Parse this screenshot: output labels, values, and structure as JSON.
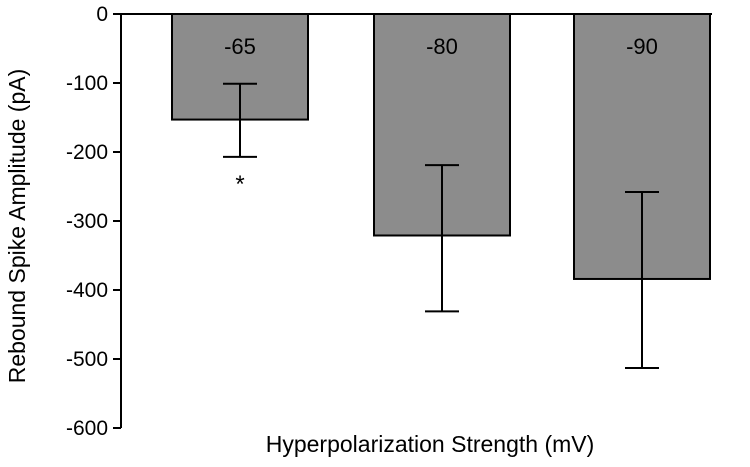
{
  "chart_data": {
    "type": "bar",
    "title": "",
    "xlabel": "Hyperpolarization Strength (mV)",
    "ylabel": "Rebound Spike Amplitude (pA)",
    "categories": [
      "-65",
      "-80",
      "-90"
    ],
    "values": [
      -153,
      -321,
      -384
    ],
    "error_low": [
      -207,
      -431,
      -513
    ],
    "error_high": [
      -101,
      -219,
      -258
    ],
    "annotations": [
      "*",
      "",
      ""
    ],
    "ylim": [
      -600,
      0
    ],
    "yticks": [
      0,
      -100,
      -200,
      -300,
      -400,
      -500,
      -600
    ],
    "grid": false,
    "legend": "none",
    "bar_color": "#8c8c8c"
  }
}
